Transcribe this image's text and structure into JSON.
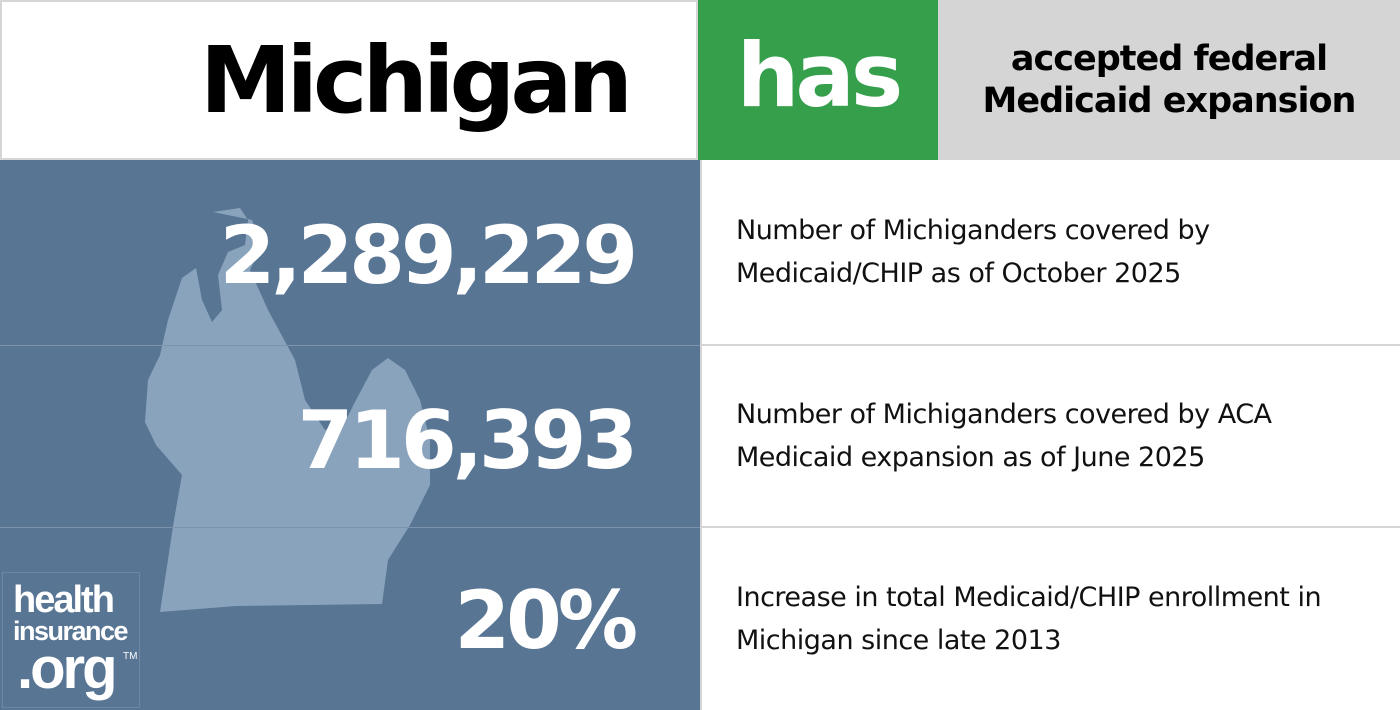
{
  "header": {
    "state": "Michigan",
    "status": "has",
    "status_color": "#369f4c",
    "description": "accepted federal Medicaid expansion"
  },
  "stats": [
    {
      "value": "2,289,229",
      "label": "Number of Michiganders covered by Medicaid/CHIP as of October 2025"
    },
    {
      "value": "716,393",
      "label": "Number of Michiganders covered by ACA Medicaid expansion as of June 2025"
    },
    {
      "value": "20%",
      "label": "Increase in total Medicaid/CHIP enrollment in Michigan since late 2013"
    }
  ],
  "logo": {
    "line1": "health",
    "line2": "insurance",
    "line3": ".org",
    "tm": "TM"
  },
  "colors": {
    "panel": "#587594",
    "map": "#8aa3bd"
  }
}
